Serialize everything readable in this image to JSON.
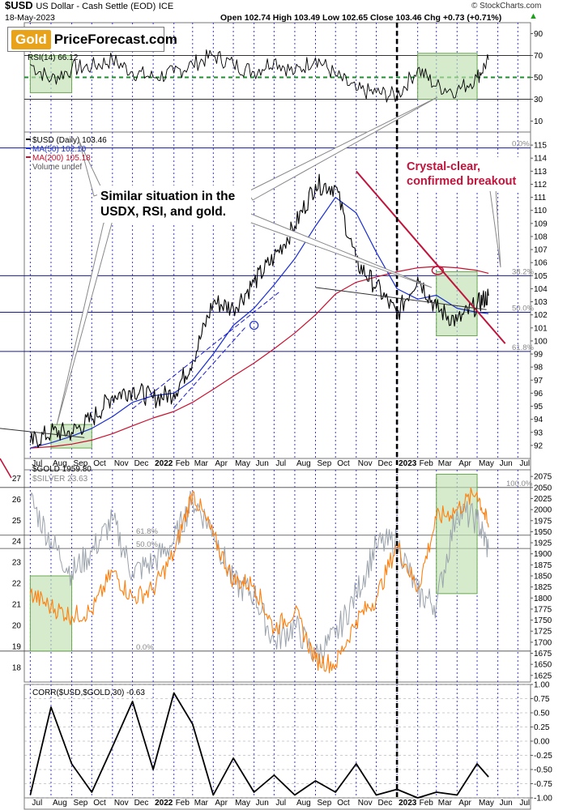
{
  "header": {
    "symbol": "$USD",
    "name": "US Dollar - Cash Settle (EOD)",
    "exchange": "ICE",
    "date": "18-May-2023",
    "ohlc": "Open 102.74  High 103.49  Low 102.65  Close 103.46  Chg +0.73 (+0.71%)",
    "chg_color": "#16a316",
    "copyright": "© StockCharts.com"
  },
  "logo": {
    "gold": "Gold",
    "rest": "PriceForecast.com"
  },
  "callouts": {
    "similar": "Similar situation in the USDX, RSI, and gold.",
    "breakout_l1": "Crystal-clear,",
    "breakout_l2": "confirmed breakout",
    "breakout_color": "#c0143c"
  },
  "chart_data": [
    {
      "type": "line",
      "panel": "rsi",
      "title": "RSI(14) 66.12",
      "ylim": [
        0,
        100
      ],
      "yticks": [
        10,
        30,
        50,
        70,
        90
      ],
      "reference_lines": [
        30,
        50,
        70
      ],
      "series": [
        {
          "name": "RSI(14) 66.12",
          "color": "#000000",
          "x": [
            "2021-07",
            "2021-08",
            "2021-09",
            "2021-10",
            "2021-11",
            "2021-12",
            "2022-01",
            "2022-02",
            "2022-03",
            "2022-04",
            "2022-05",
            "2022-06",
            "2022-07",
            "2022-08",
            "2022-09",
            "2022-10",
            "2022-11",
            "2022-12",
            "2023-01",
            "2023-02",
            "2023-03",
            "2023-04",
            "2023-05",
            "2023-05-18"
          ],
          "values": [
            62,
            48,
            58,
            60,
            66,
            55,
            50,
            54,
            62,
            70,
            62,
            55,
            66,
            54,
            68,
            52,
            38,
            36,
            33,
            58,
            42,
            38,
            50,
            66
          ]
        }
      ]
    },
    {
      "type": "line",
      "panel": "usd",
      "title": "$USD (Daily) 103.46",
      "ylim": [
        91,
        116
      ],
      "yticks": [
        92,
        93,
        94,
        95,
        96,
        97,
        98,
        99,
        100,
        101,
        102,
        103,
        104,
        105,
        106,
        107,
        108,
        109,
        110,
        111,
        112,
        113,
        114,
        115
      ],
      "fib_levels": [
        {
          "label": "0.0%",
          "value": 114.78
        },
        {
          "label": "38.2%",
          "value": 105.0
        },
        {
          "label": "50.0%",
          "value": 102.2
        },
        {
          "label": "61.8%",
          "value": 99.2
        }
      ],
      "series": [
        {
          "name": "$USD (Daily) 103.46",
          "color": "#000000",
          "x": [
            "2021-07",
            "2021-08",
            "2021-09",
            "2021-10",
            "2021-11",
            "2021-12",
            "2022-01",
            "2022-02",
            "2022-03",
            "2022-04",
            "2022-05",
            "2022-06",
            "2022-07",
            "2022-08",
            "2022-09",
            "2022-10",
            "2022-11",
            "2022-12",
            "2023-01",
            "2023-02",
            "2023-03",
            "2023-04",
            "2023-05",
            "2023-05-18"
          ],
          "values": [
            92.2,
            93.0,
            93.0,
            94.0,
            95.8,
            96.3,
            95.6,
            96.0,
            98.5,
            103.0,
            102.5,
            104.5,
            106.4,
            108.8,
            112.0,
            111.8,
            106.0,
            104.2,
            102.0,
            104.9,
            102.5,
            101.5,
            102.8,
            103.46
          ]
        },
        {
          "name": "MA(50) 102.10",
          "color": "#1a2ecf",
          "x": [
            "2021-07",
            "2021-08",
            "2021-09",
            "2021-10",
            "2021-11",
            "2021-12",
            "2022-01",
            "2022-02",
            "2022-03",
            "2022-04",
            "2022-05",
            "2022-06",
            "2022-07",
            "2022-08",
            "2022-09",
            "2022-10",
            "2022-11",
            "2022-12",
            "2023-01",
            "2023-02",
            "2023-03",
            "2023-04",
            "2023-05",
            "2023-05-18"
          ],
          "values": [
            91.8,
            92.2,
            92.7,
            93.3,
            94.2,
            95.3,
            95.8,
            96.0,
            97.0,
            99.0,
            101.2,
            102.5,
            104.3,
            106.3,
            108.8,
            111.0,
            109.8,
            106.8,
            104.0,
            103.2,
            103.5,
            102.5,
            102.2,
            102.1
          ]
        },
        {
          "name": "MA(200) 105.18",
          "color": "#c8102e",
          "x": [
            "2021-07",
            "2021-08",
            "2021-09",
            "2021-10",
            "2021-11",
            "2021-12",
            "2022-01",
            "2022-02",
            "2022-03",
            "2022-04",
            "2022-05",
            "2022-06",
            "2022-07",
            "2022-08",
            "2022-09",
            "2022-10",
            "2022-11",
            "2022-12",
            "2023-01",
            "2023-02",
            "2023-03",
            "2023-04",
            "2023-05",
            "2023-05-18"
          ],
          "values": [
            91.8,
            91.9,
            92.1,
            92.4,
            92.9,
            93.5,
            94.1,
            94.6,
            95.3,
            96.3,
            97.3,
            98.3,
            99.4,
            100.6,
            102.0,
            103.6,
            104.5,
            104.9,
            105.3,
            105.6,
            105.7,
            105.6,
            105.4,
            105.18
          ]
        }
      ],
      "legend": [
        "$USD (Daily) 103.46",
        "MA(50) 102.10",
        "MA(200) 105.18",
        "Volume undef"
      ]
    },
    {
      "type": "line",
      "panel": "gold",
      "title": "$GOLD 1959.80",
      "ylim": [
        1610,
        2090
      ],
      "yticks": [
        1625,
        1650,
        1675,
        1700,
        1725,
        1750,
        1775,
        1800,
        1825,
        1850,
        1875,
        1900,
        1925,
        1950,
        1975,
        2000,
        2025,
        2050,
        2075
      ],
      "left_ylim": [
        17.3,
        27.4
      ],
      "left_yticks": [
        18,
        19,
        20,
        21,
        22,
        23,
        24,
        25,
        26,
        27
      ],
      "fib_levels": [
        {
          "label": "100.0%",
          "value": 2050
        },
        {
          "label": "61.8%",
          "value": 1942
        },
        {
          "label": "50.0%",
          "value": 1912
        },
        {
          "label": "0.0%",
          "value": 1680
        }
      ],
      "series": [
        {
          "name": "$GOLD 1959.80",
          "color": "#ff7f0e",
          "x": [
            "2021-07",
            "2021-08",
            "2021-09",
            "2021-10",
            "2021-11",
            "2021-12",
            "2022-01",
            "2022-02",
            "2022-03",
            "2022-04",
            "2022-05",
            "2022-06",
            "2022-07",
            "2022-08",
            "2022-09",
            "2022-10",
            "2022-11",
            "2022-12",
            "2023-01",
            "2023-02",
            "2023-03",
            "2023-04",
            "2023-05",
            "2023-05-18"
          ],
          "values": [
            1810,
            1780,
            1760,
            1770,
            1860,
            1800,
            1820,
            1900,
            2040,
            1940,
            1840,
            1830,
            1730,
            1770,
            1660,
            1650,
            1750,
            1800,
            1920,
            1820,
            1980,
            2000,
            2040,
            1959.8
          ]
        },
        {
          "name": "$SILVER 23.63",
          "color": "#9aa2ab",
          "x": [
            "2021-07",
            "2021-08",
            "2021-09",
            "2021-10",
            "2021-11",
            "2021-12",
            "2022-01",
            "2022-02",
            "2022-03",
            "2022-04",
            "2022-05",
            "2022-06",
            "2022-07",
            "2022-08",
            "2022-09",
            "2022-10",
            "2022-11",
            "2022-12",
            "2023-01",
            "2023-02",
            "2023-03",
            "2023-04",
            "2023-05",
            "2023-05-18"
          ],
          "values": [
            26.0,
            24.0,
            22.5,
            23.5,
            25.0,
            22.5,
            23.0,
            24.0,
            26.0,
            24.5,
            22.0,
            21.5,
            19.2,
            20.0,
            18.5,
            19.5,
            21.5,
            23.8,
            24.0,
            21.5,
            21.0,
            25.5,
            25.0,
            23.63
          ]
        }
      ]
    },
    {
      "type": "line",
      "panel": "correlation",
      "title": "CORR($USD,$GOLD,30) -0.63",
      "ylim": [
        -1.0,
        1.0
      ],
      "yticks": [
        -1.0,
        -0.75,
        -0.5,
        -0.25,
        0.0,
        0.25,
        0.5,
        0.75,
        1.0
      ],
      "series": [
        {
          "name": "CORR($USD,$GOLD,30) -0.63",
          "color": "#000000",
          "x": [
            "2021-07",
            "2021-08",
            "2021-09",
            "2021-10",
            "2021-11",
            "2021-12",
            "2022-01",
            "2022-02",
            "2022-03",
            "2022-04",
            "2022-05",
            "2022-06",
            "2022-07",
            "2022-08",
            "2022-09",
            "2022-10",
            "2022-11",
            "2022-12",
            "2023-01",
            "2023-02",
            "2023-03",
            "2023-04",
            "2023-05",
            "2023-05-18"
          ],
          "values": [
            -0.95,
            0.6,
            -0.4,
            -0.9,
            -0.1,
            0.7,
            -0.5,
            0.85,
            0.3,
            -0.95,
            -0.3,
            -0.9,
            -0.6,
            -0.95,
            -0.7,
            -0.9,
            -0.4,
            -0.95,
            -0.85,
            -1.0,
            -0.9,
            -0.95,
            -0.4,
            -0.63
          ]
        }
      ]
    }
  ],
  "x_labels": [
    {
      "label": "Jul",
      "date": "2021-07"
    },
    {
      "label": "Aug",
      "date": "2021-08"
    },
    {
      "label": "Sep",
      "date": "2021-09"
    },
    {
      "label": "Oct",
      "date": "2021-10"
    },
    {
      "label": "Nov",
      "date": "2021-11"
    },
    {
      "label": "Dec",
      "date": "2021-12"
    },
    {
      "label": "2022",
      "date": "2022-01",
      "bold": true
    },
    {
      "label": "Feb",
      "date": "2022-02"
    },
    {
      "label": "Mar",
      "date": "2022-03"
    },
    {
      "label": "Apr",
      "date": "2022-04"
    },
    {
      "label": "May",
      "date": "2022-05"
    },
    {
      "label": "Jun",
      "date": "2022-06"
    },
    {
      "label": "Jul",
      "date": "2022-07"
    },
    {
      "label": "Aug",
      "date": "2022-08"
    },
    {
      "label": "Sep",
      "date": "2022-09"
    },
    {
      "label": "Oct",
      "date": "2022-10"
    },
    {
      "label": "Nov",
      "date": "2022-11"
    },
    {
      "label": "Dec",
      "date": "2022-12"
    },
    {
      "label": "2023",
      "date": "2023-01",
      "bold": true
    },
    {
      "label": "Feb",
      "date": "2023-02"
    },
    {
      "label": "Mar",
      "date": "2023-03"
    },
    {
      "label": "Apr",
      "date": "2023-04"
    },
    {
      "label": "May",
      "date": "2023-05"
    },
    {
      "label": "Jun",
      "date": "2023-06"
    },
    {
      "label": "Jul",
      "date": "2023-07"
    }
  ],
  "highlight_periods": [
    {
      "panel": "rsi",
      "x": [
        "2021-07",
        "2021-09"
      ],
      "y": [
        36,
        70
      ]
    },
    {
      "panel": "rsi",
      "x": [
        "2023-02",
        "2023-05"
      ],
      "y": [
        30,
        72
      ]
    },
    {
      "panel": "usd",
      "x": [
        "2021-08",
        "2021-10"
      ],
      "y": [
        91.8,
        93.6
      ]
    },
    {
      "panel": "usd",
      "x": [
        "2023-03",
        "2023-05"
      ],
      "y": [
        100.4,
        105.3
      ]
    },
    {
      "panel": "gold",
      "x": [
        "2021-07",
        "2021-09"
      ],
      "y": [
        1680,
        1850
      ]
    },
    {
      "panel": "gold",
      "x": [
        "2023-03",
        "2023-05"
      ],
      "y": [
        1810,
        2080
      ]
    }
  ],
  "colors": {
    "grid_blue": "#1a1acc",
    "panel_border": "#777777",
    "highlight_fill": "#bfe0b0",
    "highlight_stroke": "#6aa84f",
    "trend_red": "#c0143c",
    "rsi_50_line": "#1d8f2c"
  }
}
